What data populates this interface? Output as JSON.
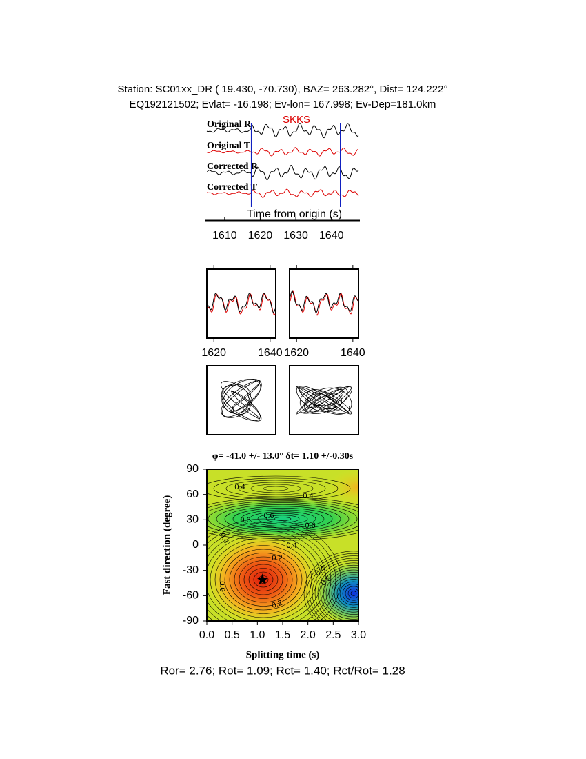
{
  "header": {
    "line1": "Station: SC01xx_DR (  19.430,  -70.730), BAZ=  263.282°, Dist=  124.222°",
    "line2": "EQ192121502; Evlat= -16.198; Ev-lon= 167.998; Ev-Dep=181.0km"
  },
  "traces": {
    "labels": [
      "Original R",
      "Original T",
      "Corrected R",
      "Corrected T"
    ],
    "phase": "SKKS",
    "x_label": "Time from origin (s)",
    "xlim": [
      1605,
      1648
    ],
    "xticks": [
      1610,
      1620,
      1630,
      1640
    ],
    "window": [
      1617.5,
      1642.5
    ]
  },
  "particle": {
    "xlim": [
      1617.5,
      1642
    ],
    "xticks": [
      1620,
      1640
    ]
  },
  "chart_data": {
    "type": "contour",
    "title": "φ= -41.0 +/- 13.0° δt= 1.10 +/-0.30s",
    "x_label": "Splitting time (s)",
    "y_label": "Fast direction (degree)",
    "xlim": [
      0,
      3
    ],
    "ylim": [
      -90,
      90
    ],
    "xticks": [
      {
        "value": 0,
        "label": "0.0"
      },
      {
        "value": 0.5,
        "label": "0.5"
      },
      {
        "value": 1,
        "label": "1.0"
      },
      {
        "value": 1.5,
        "label": "1.5"
      },
      {
        "value": 2,
        "label": "2.0"
      },
      {
        "value": 2.5,
        "label": "2.5"
      },
      {
        "value": 3,
        "label": "3.0"
      }
    ],
    "yticks": [
      -90,
      -60,
      -30,
      0,
      30,
      60,
      90
    ],
    "best": {
      "x": 1.1,
      "y": -41
    },
    "contour_labels": [
      "0.4",
      "0.4",
      "0.6",
      "0.6",
      "0.6",
      "0.4",
      "0.4",
      "0.2",
      "0.4",
      "0.6",
      "0.0",
      "0.2"
    ]
  },
  "footer": "Ror= 2.76; Rot= 1.09; Rct= 1.40; Rct/Rot= 1.28"
}
